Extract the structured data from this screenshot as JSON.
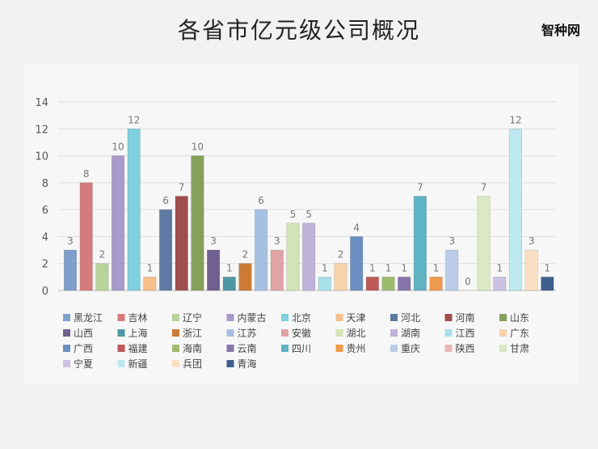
{
  "header": {
    "title": "各省市亿元级公司概况",
    "brand": "智种网"
  },
  "chart_data": {
    "type": "bar",
    "title": "各省市亿元级公司概况",
    "xlabel": "",
    "ylabel": "",
    "ylim": [
      0,
      14
    ],
    "yticks": [
      0,
      2,
      4,
      6,
      8,
      10,
      12,
      14
    ],
    "grid": true,
    "legend_position": "bottom",
    "series": [
      {
        "name": "黑龙江",
        "values": [
          3
        ],
        "color": "#7f9fcc"
      },
      {
        "name": "吉林",
        "values": [
          8
        ],
        "color": "#d77c7c"
      },
      {
        "name": "辽宁",
        "values": [
          2
        ],
        "color": "#b7d39a"
      },
      {
        "name": "内蒙古",
        "values": [
          10
        ],
        "color": "#a99ac9"
      },
      {
        "name": "北京",
        "values": [
          12
        ],
        "color": "#7fd0e0"
      },
      {
        "name": "天津",
        "values": [
          1
        ],
        "color": "#f7bf8a"
      },
      {
        "name": "河北",
        "values": [
          6
        ],
        "color": "#5e7aa3"
      },
      {
        "name": "河南",
        "values": [
          7
        ],
        "color": "#a04e4e"
      },
      {
        "name": "山东",
        "values": [
          10
        ],
        "color": "#84a05a"
      },
      {
        "name": "山西",
        "values": [
          3
        ],
        "color": "#6f6090"
      },
      {
        "name": "上海",
        "values": [
          1
        ],
        "color": "#4f97a5"
      },
      {
        "name": "浙江",
        "values": [
          2
        ],
        "color": "#cd7a36"
      },
      {
        "name": "江苏",
        "values": [
          6
        ],
        "color": "#a6c0e3"
      },
      {
        "name": "安徽",
        "values": [
          3
        ],
        "color": "#e1a3a3"
      },
      {
        "name": "湖北",
        "values": [
          5
        ],
        "color": "#d3e3b5"
      },
      {
        "name": "湖南",
        "values": [
          5
        ],
        "color": "#bfb3d9"
      },
      {
        "name": "江西",
        "values": [
          1
        ],
        "color": "#a8e0ea"
      },
      {
        "name": "广东",
        "values": [
          2
        ],
        "color": "#f8d2aa"
      },
      {
        "name": "广西",
        "values": [
          4
        ],
        "color": "#6b8ec0"
      },
      {
        "name": "福建",
        "values": [
          1
        ],
        "color": "#be5858"
      },
      {
        "name": "海南",
        "values": [
          1
        ],
        "color": "#9cbb6e"
      },
      {
        "name": "云南",
        "values": [
          1
        ],
        "color": "#8575a8"
      },
      {
        "name": "四川",
        "values": [
          7
        ],
        "color": "#5fb3c3"
      },
      {
        "name": "贵州",
        "values": [
          1
        ],
        "color": "#ef9a4c"
      },
      {
        "name": "重庆",
        "values": [
          3
        ],
        "color": "#b9cde8"
      },
      {
        "name": "陕西",
        "values": [
          0
        ],
        "color": "#e8b7b7"
      },
      {
        "name": "甘肃",
        "values": [
          7
        ],
        "color": "#dbe8c3"
      },
      {
        "name": "宁夏",
        "values": [
          1
        ],
        "color": "#cbc1e0"
      },
      {
        "name": "新疆",
        "values": [
          12
        ],
        "color": "#bde8ee"
      },
      {
        "name": "兵团",
        "values": [
          3
        ],
        "color": "#fae0c2"
      },
      {
        "name": "青海",
        "values": [
          1
        ],
        "color": "#3f5f8f"
      }
    ]
  }
}
